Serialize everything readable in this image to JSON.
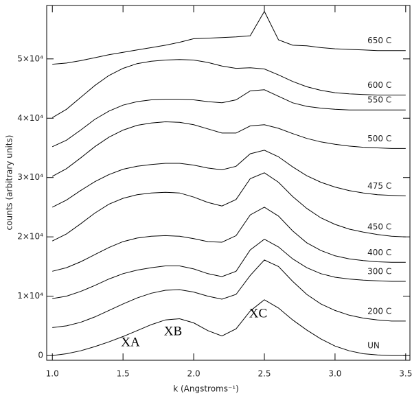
{
  "chart_data": {
    "type": "line",
    "x_label": "k (Angstroms⁻¹)",
    "y_label": "counts (arbitrary units)",
    "x": [
      1.0,
      1.1,
      1.2,
      1.3,
      1.4,
      1.5,
      1.6,
      1.7,
      1.8,
      1.9,
      2.0,
      2.1,
      2.2,
      2.3,
      2.4,
      2.5,
      2.6,
      2.7,
      2.8,
      2.9,
      3.0,
      3.1,
      3.2,
      3.3,
      3.4,
      3.5
    ],
    "xlim": [
      0.96,
      3.53
    ],
    "ylim": [
      -800,
      59000
    ],
    "xticks": [
      {
        "value": 1,
        "label": "1.0"
      },
      {
        "value": 1.5,
        "label": "1.5"
      },
      {
        "value": 2,
        "label": "2.0"
      },
      {
        "value": 2.5,
        "label": "2.5"
      },
      {
        "value": 3,
        "label": "3.0"
      },
      {
        "value": 3.5,
        "label": "3.5"
      }
    ],
    "yticks": [
      0,
      {
        "value": 10000,
        "label": "1×10⁴"
      },
      {
        "value": 20000,
        "label": "2×10⁴"
      },
      {
        "value": 30000,
        "label": "3×10⁴"
      },
      {
        "value": 40000,
        "label": "4×10⁴"
      },
      {
        "value": 50000,
        "label": "5×10⁴"
      }
    ],
    "series": [
      {
        "name": "UN",
        "color": "#000000",
        "values": [
          0,
          300,
          800,
          1500,
          2300,
          3200,
          4200,
          5200,
          6000,
          6200,
          5500,
          4200,
          3300,
          4500,
          7500,
          9400,
          8000,
          6000,
          4300,
          2800,
          1600,
          800,
          300,
          100,
          0,
          0
        ]
      },
      {
        "name": "200 C",
        "color": "#000000",
        "values": [
          4700,
          5000,
          5600,
          6500,
          7600,
          8700,
          9700,
          10500,
          11000,
          11100,
          10700,
          10000,
          9500,
          10300,
          13500,
          16100,
          15000,
          12500,
          10300,
          8700,
          7600,
          6800,
          6300,
          6000,
          5800,
          5800
        ]
      },
      {
        "name": "300 C",
        "color": "#000000",
        "values": [
          9600,
          10000,
          10800,
          11800,
          12900,
          13800,
          14400,
          14800,
          15100,
          15100,
          14600,
          13800,
          13300,
          14200,
          17800,
          19600,
          18300,
          16300,
          14800,
          13800,
          13200,
          12900,
          12700,
          12600,
          12500,
          12500
        ]
      },
      {
        "name": "400 C",
        "color": "#000000",
        "values": [
          14200,
          14800,
          15800,
          17000,
          18200,
          19200,
          19800,
          20100,
          20200,
          20100,
          19700,
          19200,
          19100,
          20200,
          23700,
          25000,
          23500,
          21000,
          19000,
          17700,
          16800,
          16300,
          16000,
          15800,
          15700,
          15700
        ]
      },
      {
        "name": "450 C",
        "color": "#000000",
        "values": [
          19300,
          20500,
          22200,
          24000,
          25500,
          26500,
          27100,
          27400,
          27500,
          27400,
          26700,
          25800,
          25200,
          26300,
          29800,
          30800,
          29200,
          26800,
          24800,
          23200,
          22100,
          21300,
          20800,
          20400,
          20100,
          20000
        ]
      },
      {
        "name": "475 C",
        "color": "#000000",
        "values": [
          25000,
          26200,
          27800,
          29300,
          30500,
          31400,
          31900,
          32200,
          32400,
          32400,
          32100,
          31600,
          31300,
          31900,
          34000,
          34600,
          33500,
          31800,
          30300,
          29200,
          28400,
          27800,
          27400,
          27100,
          27000,
          26900
        ]
      },
      {
        "name": "500 C",
        "color": "#000000",
        "values": [
          30200,
          31500,
          33300,
          35200,
          36800,
          38000,
          38800,
          39200,
          39400,
          39300,
          38900,
          38200,
          37500,
          37500,
          38700,
          38900,
          38300,
          37400,
          36600,
          36000,
          35600,
          35300,
          35100,
          35000,
          34900,
          34900
        ]
      },
      {
        "name": "550 C",
        "color": "#000000",
        "values": [
          35200,
          36300,
          38000,
          39800,
          41200,
          42200,
          42800,
          43100,
          43200,
          43200,
          43100,
          42800,
          42600,
          43100,
          44600,
          44800,
          43700,
          42600,
          42000,
          41700,
          41500,
          41400,
          41400,
          41400,
          41400,
          41400
        ]
      },
      {
        "name": "600 C",
        "color": "#000000",
        "values": [
          40100,
          41500,
          43500,
          45500,
          47200,
          48400,
          49200,
          49600,
          49800,
          49900,
          49800,
          49400,
          48800,
          48400,
          48500,
          48300,
          47300,
          46200,
          45300,
          44700,
          44300,
          44100,
          44000,
          43900,
          43900,
          43900
        ]
      },
      {
        "name": "650 C",
        "color": "#000000",
        "values": [
          49100,
          49300,
          49700,
          50200,
          50700,
          51100,
          51500,
          51900,
          52300,
          52800,
          53400,
          53500,
          53600,
          53700,
          53900,
          58000,
          53200,
          52300,
          52200,
          51900,
          51700,
          51600,
          51500,
          51400,
          51400,
          51400
        ]
      }
    ],
    "annotations": [
      "XA",
      "XB",
      "XC"
    ]
  }
}
